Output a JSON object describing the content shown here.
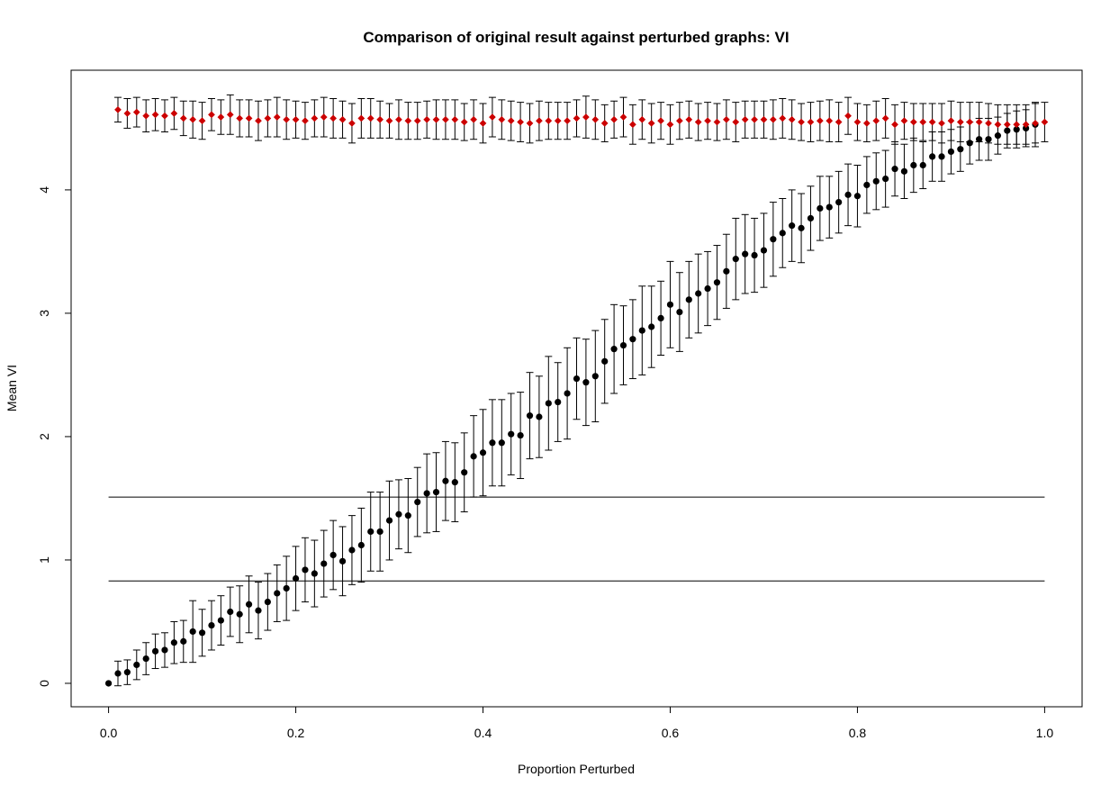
{
  "chart_data": {
    "type": "scatter",
    "title": "Comparison of original result against perturbed graphs: VI",
    "xlabel": "Proportion Perturbed",
    "ylabel": "Mean VI",
    "xlim": [
      -0.04,
      1.04
    ],
    "ylim": [
      -0.19,
      4.97
    ],
    "x_ticks": [
      0.0,
      0.2,
      0.4,
      0.6,
      0.8,
      1.0
    ],
    "x_tick_labels": [
      "0.0",
      "0.2",
      "0.4",
      "0.6",
      "0.8",
      "1.0"
    ],
    "y_ticks": [
      0,
      1,
      2,
      3,
      4
    ],
    "y_tick_labels": [
      "0",
      "1",
      "2",
      "3",
      "4"
    ],
    "grid": false,
    "legend": "none",
    "hlines": [
      {
        "y": 1.51,
        "color": "#000000"
      },
      {
        "y": 0.83,
        "color": "#000000"
      }
    ],
    "series": [
      {
        "color": "#000000",
        "marker": "circle",
        "points": [
          [
            0.0,
            0.0,
            0.0
          ],
          [
            0.01,
            0.08,
            0.1
          ],
          [
            0.02,
            0.09,
            0.1
          ],
          [
            0.03,
            0.15,
            0.12
          ],
          [
            0.04,
            0.2,
            0.13
          ],
          [
            0.05,
            0.26,
            0.14
          ],
          [
            0.06,
            0.27,
            0.14
          ],
          [
            0.07,
            0.33,
            0.17
          ],
          [
            0.08,
            0.34,
            0.17
          ],
          [
            0.09,
            0.42,
            0.25
          ],
          [
            0.1,
            0.41,
            0.19
          ],
          [
            0.11,
            0.47,
            0.2
          ],
          [
            0.12,
            0.51,
            0.2
          ],
          [
            0.13,
            0.58,
            0.2
          ],
          [
            0.14,
            0.56,
            0.23
          ],
          [
            0.15,
            0.64,
            0.23
          ],
          [
            0.16,
            0.59,
            0.23
          ],
          [
            0.17,
            0.66,
            0.23
          ],
          [
            0.18,
            0.73,
            0.23
          ],
          [
            0.19,
            0.77,
            0.26
          ],
          [
            0.2,
            0.85,
            0.26
          ],
          [
            0.21,
            0.92,
            0.26
          ],
          [
            0.22,
            0.89,
            0.27
          ],
          [
            0.23,
            0.97,
            0.27
          ],
          [
            0.24,
            1.04,
            0.28
          ],
          [
            0.25,
            0.99,
            0.28
          ],
          [
            0.26,
            1.08,
            0.28
          ],
          [
            0.27,
            1.12,
            0.3
          ],
          [
            0.28,
            1.23,
            0.32
          ],
          [
            0.29,
            1.23,
            0.32
          ],
          [
            0.3,
            1.32,
            0.32
          ],
          [
            0.31,
            1.37,
            0.28
          ],
          [
            0.32,
            1.36,
            0.3
          ],
          [
            0.33,
            1.47,
            0.28
          ],
          [
            0.34,
            1.54,
            0.32
          ],
          [
            0.35,
            1.55,
            0.32
          ],
          [
            0.36,
            1.64,
            0.32
          ],
          [
            0.37,
            1.63,
            0.32
          ],
          [
            0.38,
            1.71,
            0.32
          ],
          [
            0.39,
            1.84,
            0.33
          ],
          [
            0.4,
            1.87,
            0.35
          ],
          [
            0.41,
            1.95,
            0.35
          ],
          [
            0.42,
            1.95,
            0.35
          ],
          [
            0.43,
            2.02,
            0.33
          ],
          [
            0.44,
            2.01,
            0.35
          ],
          [
            0.45,
            2.17,
            0.35
          ],
          [
            0.46,
            2.16,
            0.33
          ],
          [
            0.47,
            2.27,
            0.38
          ],
          [
            0.48,
            2.28,
            0.32
          ],
          [
            0.49,
            2.35,
            0.37
          ],
          [
            0.5,
            2.47,
            0.33
          ],
          [
            0.51,
            2.44,
            0.35
          ],
          [
            0.52,
            2.49,
            0.37
          ],
          [
            0.53,
            2.61,
            0.34
          ],
          [
            0.54,
            2.71,
            0.36
          ],
          [
            0.55,
            2.74,
            0.32
          ],
          [
            0.56,
            2.79,
            0.32
          ],
          [
            0.57,
            2.86,
            0.36
          ],
          [
            0.58,
            2.89,
            0.33
          ],
          [
            0.59,
            2.96,
            0.3
          ],
          [
            0.6,
            3.07,
            0.35
          ],
          [
            0.61,
            3.01,
            0.32
          ],
          [
            0.62,
            3.11,
            0.31
          ],
          [
            0.63,
            3.16,
            0.32
          ],
          [
            0.64,
            3.2,
            0.3
          ],
          [
            0.65,
            3.25,
            0.3
          ],
          [
            0.66,
            3.34,
            0.3
          ],
          [
            0.67,
            3.44,
            0.33
          ],
          [
            0.68,
            3.48,
            0.32
          ],
          [
            0.69,
            3.47,
            0.3
          ],
          [
            0.7,
            3.51,
            0.3
          ],
          [
            0.71,
            3.6,
            0.3
          ],
          [
            0.72,
            3.65,
            0.28
          ],
          [
            0.73,
            3.71,
            0.29
          ],
          [
            0.74,
            3.69,
            0.28
          ],
          [
            0.75,
            3.77,
            0.26
          ],
          [
            0.76,
            3.85,
            0.26
          ],
          [
            0.77,
            3.86,
            0.25
          ],
          [
            0.78,
            3.9,
            0.25
          ],
          [
            0.79,
            3.96,
            0.25
          ],
          [
            0.8,
            3.95,
            0.25
          ],
          [
            0.81,
            4.04,
            0.23
          ],
          [
            0.82,
            4.07,
            0.23
          ],
          [
            0.83,
            4.09,
            0.23
          ],
          [
            0.84,
            4.17,
            0.22
          ],
          [
            0.85,
            4.15,
            0.22
          ],
          [
            0.86,
            4.2,
            0.22
          ],
          [
            0.87,
            4.2,
            0.19
          ],
          [
            0.88,
            4.27,
            0.2
          ],
          [
            0.89,
            4.27,
            0.2
          ],
          [
            0.9,
            4.31,
            0.18
          ],
          [
            0.91,
            4.33,
            0.18
          ],
          [
            0.92,
            4.38,
            0.17
          ],
          [
            0.93,
            4.41,
            0.17
          ],
          [
            0.94,
            4.41,
            0.17
          ],
          [
            0.95,
            4.44,
            0.15
          ],
          [
            0.96,
            4.48,
            0.14
          ],
          [
            0.97,
            4.49,
            0.15
          ],
          [
            0.98,
            4.5,
            0.15
          ],
          [
            0.99,
            4.53,
            0.18
          ]
        ]
      },
      {
        "color": "#cc0000",
        "marker": "diamond",
        "points": [
          [
            0.01,
            4.65,
            0.1
          ],
          [
            0.02,
            4.62,
            0.12
          ],
          [
            0.03,
            4.63,
            0.12
          ],
          [
            0.04,
            4.6,
            0.13
          ],
          [
            0.05,
            4.61,
            0.13
          ],
          [
            0.06,
            4.6,
            0.13
          ],
          [
            0.07,
            4.62,
            0.13
          ],
          [
            0.08,
            4.58,
            0.14
          ],
          [
            0.09,
            4.57,
            0.15
          ],
          [
            0.1,
            4.56,
            0.15
          ],
          [
            0.11,
            4.61,
            0.13
          ],
          [
            0.12,
            4.59,
            0.14
          ],
          [
            0.13,
            4.61,
            0.16
          ],
          [
            0.14,
            4.58,
            0.15
          ],
          [
            0.15,
            4.58,
            0.15
          ],
          [
            0.16,
            4.56,
            0.16
          ],
          [
            0.17,
            4.58,
            0.15
          ],
          [
            0.18,
            4.59,
            0.16
          ],
          [
            0.19,
            4.57,
            0.16
          ],
          [
            0.2,
            4.57,
            0.15
          ],
          [
            0.21,
            4.56,
            0.15
          ],
          [
            0.22,
            4.58,
            0.15
          ],
          [
            0.23,
            4.59,
            0.16
          ],
          [
            0.24,
            4.58,
            0.16
          ],
          [
            0.25,
            4.57,
            0.15
          ],
          [
            0.26,
            4.54,
            0.16
          ],
          [
            0.27,
            4.58,
            0.16
          ],
          [
            0.28,
            4.58,
            0.16
          ],
          [
            0.29,
            4.57,
            0.15
          ],
          [
            0.3,
            4.56,
            0.14
          ],
          [
            0.31,
            4.57,
            0.16
          ],
          [
            0.32,
            4.56,
            0.15
          ],
          [
            0.33,
            4.56,
            0.15
          ],
          [
            0.34,
            4.57,
            0.15
          ],
          [
            0.35,
            4.57,
            0.16
          ],
          [
            0.36,
            4.57,
            0.16
          ],
          [
            0.37,
            4.57,
            0.16
          ],
          [
            0.38,
            4.55,
            0.15
          ],
          [
            0.39,
            4.57,
            0.16
          ],
          [
            0.4,
            4.54,
            0.16
          ],
          [
            0.41,
            4.59,
            0.16
          ],
          [
            0.42,
            4.57,
            0.16
          ],
          [
            0.43,
            4.56,
            0.16
          ],
          [
            0.44,
            4.55,
            0.16
          ],
          [
            0.45,
            4.54,
            0.16
          ],
          [
            0.46,
            4.56,
            0.16
          ],
          [
            0.47,
            4.56,
            0.15
          ],
          [
            0.48,
            4.56,
            0.15
          ],
          [
            0.49,
            4.56,
            0.15
          ],
          [
            0.5,
            4.58,
            0.15
          ],
          [
            0.51,
            4.59,
            0.17
          ],
          [
            0.52,
            4.57,
            0.16
          ],
          [
            0.53,
            4.54,
            0.15
          ],
          [
            0.54,
            4.57,
            0.15
          ],
          [
            0.55,
            4.59,
            0.16
          ],
          [
            0.56,
            4.53,
            0.16
          ],
          [
            0.57,
            4.57,
            0.16
          ],
          [
            0.58,
            4.54,
            0.16
          ],
          [
            0.59,
            4.56,
            0.15
          ],
          [
            0.6,
            4.53,
            0.16
          ],
          [
            0.61,
            4.56,
            0.15
          ],
          [
            0.62,
            4.57,
            0.15
          ],
          [
            0.63,
            4.55,
            0.15
          ],
          [
            0.64,
            4.56,
            0.15
          ],
          [
            0.65,
            4.55,
            0.15
          ],
          [
            0.66,
            4.57,
            0.16
          ],
          [
            0.67,
            4.55,
            0.16
          ],
          [
            0.68,
            4.57,
            0.15
          ],
          [
            0.69,
            4.57,
            0.15
          ],
          [
            0.7,
            4.57,
            0.15
          ],
          [
            0.71,
            4.57,
            0.16
          ],
          [
            0.72,
            4.58,
            0.16
          ],
          [
            0.73,
            4.57,
            0.16
          ],
          [
            0.74,
            4.55,
            0.15
          ],
          [
            0.75,
            4.55,
            0.16
          ],
          [
            0.76,
            4.56,
            0.16
          ],
          [
            0.77,
            4.56,
            0.17
          ],
          [
            0.78,
            4.55,
            0.16
          ],
          [
            0.79,
            4.6,
            0.15
          ],
          [
            0.8,
            4.55,
            0.15
          ],
          [
            0.81,
            4.54,
            0.15
          ],
          [
            0.82,
            4.56,
            0.16
          ],
          [
            0.83,
            4.58,
            0.16
          ],
          [
            0.84,
            4.53,
            0.16
          ],
          [
            0.85,
            4.56,
            0.15
          ],
          [
            0.86,
            4.55,
            0.15
          ],
          [
            0.87,
            4.55,
            0.15
          ],
          [
            0.88,
            4.55,
            0.15
          ],
          [
            0.89,
            4.54,
            0.16
          ],
          [
            0.9,
            4.56,
            0.16
          ],
          [
            0.91,
            4.55,
            0.16
          ],
          [
            0.92,
            4.55,
            0.16
          ],
          [
            0.93,
            4.55,
            0.16
          ],
          [
            0.94,
            4.54,
            0.16
          ],
          [
            0.95,
            4.53,
            0.16
          ],
          [
            0.96,
            4.53,
            0.16
          ],
          [
            0.97,
            4.53,
            0.16
          ],
          [
            0.98,
            4.53,
            0.16
          ],
          [
            0.99,
            4.54,
            0.16
          ],
          [
            1.0,
            4.55,
            0.16
          ]
        ]
      }
    ]
  }
}
